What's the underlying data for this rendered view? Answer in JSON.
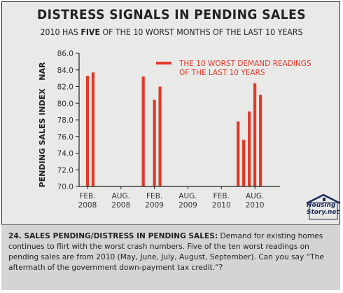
{
  "header": {
    "title": "DISTRESS SIGNALS IN PENDING SALES",
    "subtitle_pre": "2010 HAS ",
    "subtitle_bold": "FIVE",
    "subtitle_post": " OF THE 10 WORST MONTHS OF THE LAST 10 YEARS"
  },
  "chart_data": {
    "type": "bar",
    "title": "DISTRESS SIGNALS IN PENDING SALES",
    "subtitle": "2010 HAS FIVE OF THE 10 WORST MONTHS OF THE LAST 10 YEARS",
    "ylabel": "PENDING SALES INDEX   NAR",
    "xlabel": "",
    "ylim": [
      70.0,
      86.0
    ],
    "yticks": [
      "86.0",
      "84.0",
      "82.0",
      "80.0",
      "78.0",
      "76.0",
      "74.0",
      "72.0",
      "70.0"
    ],
    "xlim": [
      "2008-01",
      "2010-12"
    ],
    "xticks": [
      {
        "line1": "FEB.",
        "line2": "2008",
        "month": "2008-02"
      },
      {
        "line1": "AUG.",
        "line2": "2008",
        "month": "2008-08"
      },
      {
        "line1": "FEB.",
        "line2": "2009",
        "month": "2009-02"
      },
      {
        "line1": "AUG.",
        "line2": "2009",
        "month": "2009-08"
      },
      {
        "line1": "FEB.",
        "line2": "2010",
        "month": "2010-02"
      },
      {
        "line1": "AUG.",
        "line2": "2010",
        "month": "2010-08"
      }
    ],
    "series": [
      {
        "name": "THE 10 WORST DEMAND READINGS OF THE LAST 10 YEARS",
        "points": [
          {
            "month": "2008-02",
            "value": 83.3
          },
          {
            "month": "2008-03",
            "value": 83.7
          },
          {
            "month": "2008-12",
            "value": 83.2
          },
          {
            "month": "2009-02",
            "value": 80.4
          },
          {
            "month": "2009-03",
            "value": 82.0
          },
          {
            "month": "2010-05",
            "value": 77.8
          },
          {
            "month": "2010-06",
            "value": 75.6
          },
          {
            "month": "2010-07",
            "value": 79.0
          },
          {
            "month": "2010-08",
            "value": 82.4
          },
          {
            "month": "2010-09",
            "value": 81.0
          }
        ]
      }
    ],
    "legend": {
      "line1": "THE 10 WORST DEMAND READINGS",
      "line2": "OF THE LAST 10 YEARS",
      "placement": "top-right"
    },
    "grid": false,
    "colors": {
      "bar": "#e0392a",
      "axis": "#222222",
      "text": "#333333"
    }
  },
  "logo": {
    "line1": "Housing",
    "line2": "Story.net"
  },
  "caption": {
    "heading": "24. SALES PENDING/DISTRESS IN PENDING SALES:",
    "body": " Demand for existing homes continues to flirt with the worst crash numbers. Five of the ten worst readings on pending sales are from 2010 (May, June, July, August, September). Can you say “The aftermath of the government down-payment tax credit.”?"
  }
}
